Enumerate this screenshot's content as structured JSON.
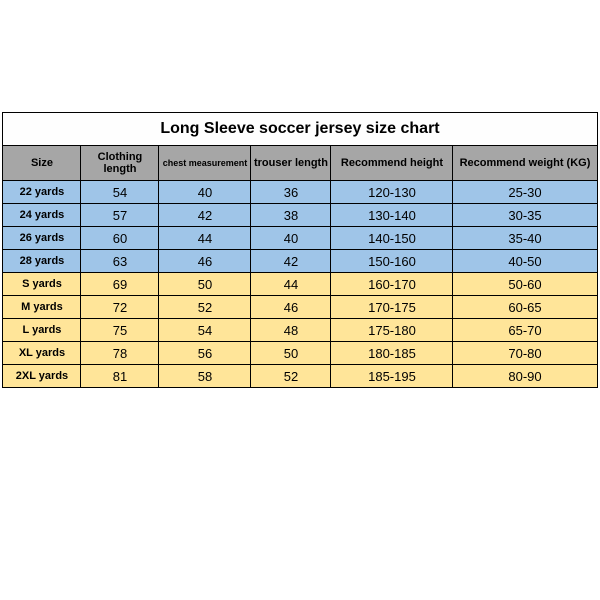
{
  "title": "Long Sleeve soccer jersey size chart",
  "columns": [
    "Size",
    "Clothing length",
    "chest measurement",
    "trouser length",
    "Recommend height",
    "Recommend weight (KG)"
  ],
  "header_bg": "#a6a6a6",
  "group_colors": {
    "kids": "#9fc5e8",
    "adult": "#ffe599"
  },
  "rows": [
    {
      "g": "kids",
      "cells": [
        "22 yards",
        "54",
        "40",
        "36",
        "120-130",
        "25-30"
      ]
    },
    {
      "g": "kids",
      "cells": [
        "24 yards",
        "57",
        "42",
        "38",
        "130-140",
        "30-35"
      ]
    },
    {
      "g": "kids",
      "cells": [
        "26 yards",
        "60",
        "44",
        "40",
        "140-150",
        "35-40"
      ]
    },
    {
      "g": "kids",
      "cells": [
        "28 yards",
        "63",
        "46",
        "42",
        "150-160",
        "40-50"
      ]
    },
    {
      "g": "adult",
      "cells": [
        "S yards",
        "69",
        "50",
        "44",
        "160-170",
        "50-60"
      ]
    },
    {
      "g": "adult",
      "cells": [
        "M yards",
        "72",
        "52",
        "46",
        "170-175",
        "60-65"
      ]
    },
    {
      "g": "adult",
      "cells": [
        "L yards",
        "75",
        "54",
        "48",
        "175-180",
        "65-70"
      ]
    },
    {
      "g": "adult",
      "cells": [
        "XL yards",
        "78",
        "56",
        "50",
        "180-185",
        "70-80"
      ]
    },
    {
      "g": "adult",
      "cells": [
        "2XL yards",
        "81",
        "58",
        "52",
        "185-195",
        "80-90"
      ]
    }
  ]
}
